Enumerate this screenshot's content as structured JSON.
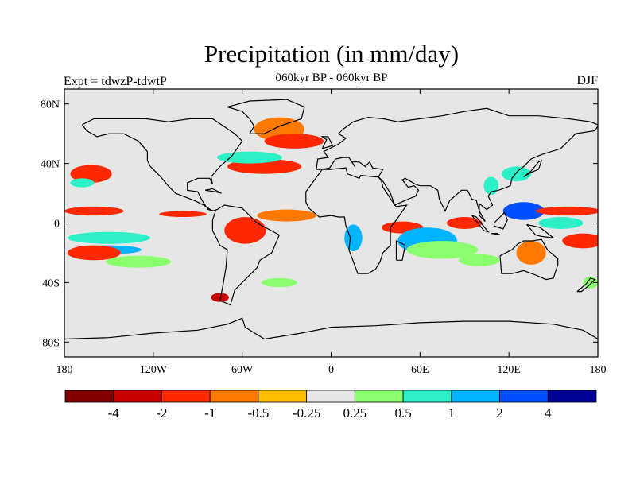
{
  "header": {
    "title": "Precipitation (in mm/day)",
    "left": "Expt = tdwzP-tdwtP",
    "center": "060kyr BP - 060kyr BP",
    "right": "DJF"
  },
  "map": {
    "lat_ticks": [
      {
        "lat": 80,
        "label": "80N"
      },
      {
        "lat": 40,
        "label": "40N"
      },
      {
        "lat": 0,
        "label": "0"
      },
      {
        "lat": -40,
        "label": "40S"
      },
      {
        "lat": -80,
        "label": "80S"
      }
    ],
    "lon_ticks": [
      {
        "lon": -180,
        "label": "180"
      },
      {
        "lon": -120,
        "label": "120W"
      },
      {
        "lon": -60,
        "label": "60W"
      },
      {
        "lon": 0,
        "label": "0"
      },
      {
        "lon": 60,
        "label": "60E"
      },
      {
        "lon": 120,
        "label": "120E"
      },
      {
        "lon": 180,
        "label": "180"
      }
    ],
    "ocean_color": "#e6e6e6",
    "colorbar": {
      "colors": [
        "#800000",
        "#c80000",
        "#ff2800",
        "#ff7800",
        "#ffbe00",
        "#e6e6e6",
        "#8cff6e",
        "#2cf0c8",
        "#00b4ff",
        "#0050ff",
        "#000096"
      ],
      "labels": [
        "-4",
        "-2",
        "-1",
        "-0.5",
        "-0.25",
        "0.25",
        "0.5",
        "1",
        "2",
        "4"
      ]
    },
    "anomalies": [
      {
        "lon": -35,
        "lat": 63,
        "rx": 17,
        "ry": 8,
        "class": -2
      },
      {
        "lon": -25,
        "lat": 55,
        "rx": 20,
        "ry": 5,
        "class": -3
      },
      {
        "lon": -45,
        "lat": 38,
        "rx": 25,
        "ry": 5,
        "class": -3
      },
      {
        "lon": -55,
        "lat": 44,
        "rx": 22,
        "ry": 4,
        "class": 2
      },
      {
        "lon": -162,
        "lat": 33,
        "rx": 14,
        "ry": 6,
        "class": -3
      },
      {
        "lon": -168,
        "lat": 27,
        "rx": 8,
        "ry": 3,
        "class": 2
      },
      {
        "lon": -160,
        "lat": 8,
        "rx": 20,
        "ry": 3,
        "class": -3
      },
      {
        "lon": -100,
        "lat": 6,
        "rx": 16,
        "ry": 2,
        "class": -3
      },
      {
        "lon": -30,
        "lat": 5,
        "rx": 20,
        "ry": 4,
        "class": -2
      },
      {
        "lon": -58,
        "lat": -5,
        "rx": 14,
        "ry": 9,
        "class": -3
      },
      {
        "lon": -150,
        "lat": -10,
        "rx": 28,
        "ry": 4,
        "class": 2
      },
      {
        "lon": -150,
        "lat": -18,
        "rx": 22,
        "ry": 3,
        "class": 3
      },
      {
        "lon": -160,
        "lat": -20,
        "rx": 18,
        "ry": 5,
        "class": -3
      },
      {
        "lon": -130,
        "lat": -26,
        "rx": 22,
        "ry": 4,
        "class": 1
      },
      {
        "lon": -35,
        "lat": -40,
        "rx": 12,
        "ry": 3,
        "class": 1
      },
      {
        "lon": -75,
        "lat": -50,
        "rx": 6,
        "ry": 3,
        "class": -4
      },
      {
        "lon": 15,
        "lat": -10,
        "rx": 6,
        "ry": 9,
        "class": 3
      },
      {
        "lon": 48,
        "lat": -3,
        "rx": 14,
        "ry": 4,
        "class": -3
      },
      {
        "lon": 65,
        "lat": -12,
        "rx": 20,
        "ry": 9,
        "class": 3
      },
      {
        "lon": 75,
        "lat": -18,
        "rx": 24,
        "ry": 6,
        "class": 1
      },
      {
        "lon": 90,
        "lat": 0,
        "rx": 12,
        "ry": 4,
        "class": -3
      },
      {
        "lon": 100,
        "lat": -25,
        "rx": 14,
        "ry": 4,
        "class": 1
      },
      {
        "lon": 130,
        "lat": 8,
        "rx": 14,
        "ry": 6,
        "class": 4
      },
      {
        "lon": 160,
        "lat": 8,
        "rx": 22,
        "ry": 3,
        "class": -3
      },
      {
        "lon": 155,
        "lat": 0,
        "rx": 15,
        "ry": 4,
        "class": 2
      },
      {
        "lon": 170,
        "lat": -12,
        "rx": 14,
        "ry": 5,
        "class": -3
      },
      {
        "lon": 135,
        "lat": -20,
        "rx": 10,
        "ry": 8,
        "class": -2
      },
      {
        "lon": 125,
        "lat": 33,
        "rx": 10,
        "ry": 5,
        "class": 2
      },
      {
        "lon": 108,
        "lat": 25,
        "rx": 5,
        "ry": 6,
        "class": 2
      },
      {
        "lon": 175,
        "lat": -40,
        "rx": 5,
        "ry": 4,
        "class": 1
      }
    ]
  }
}
